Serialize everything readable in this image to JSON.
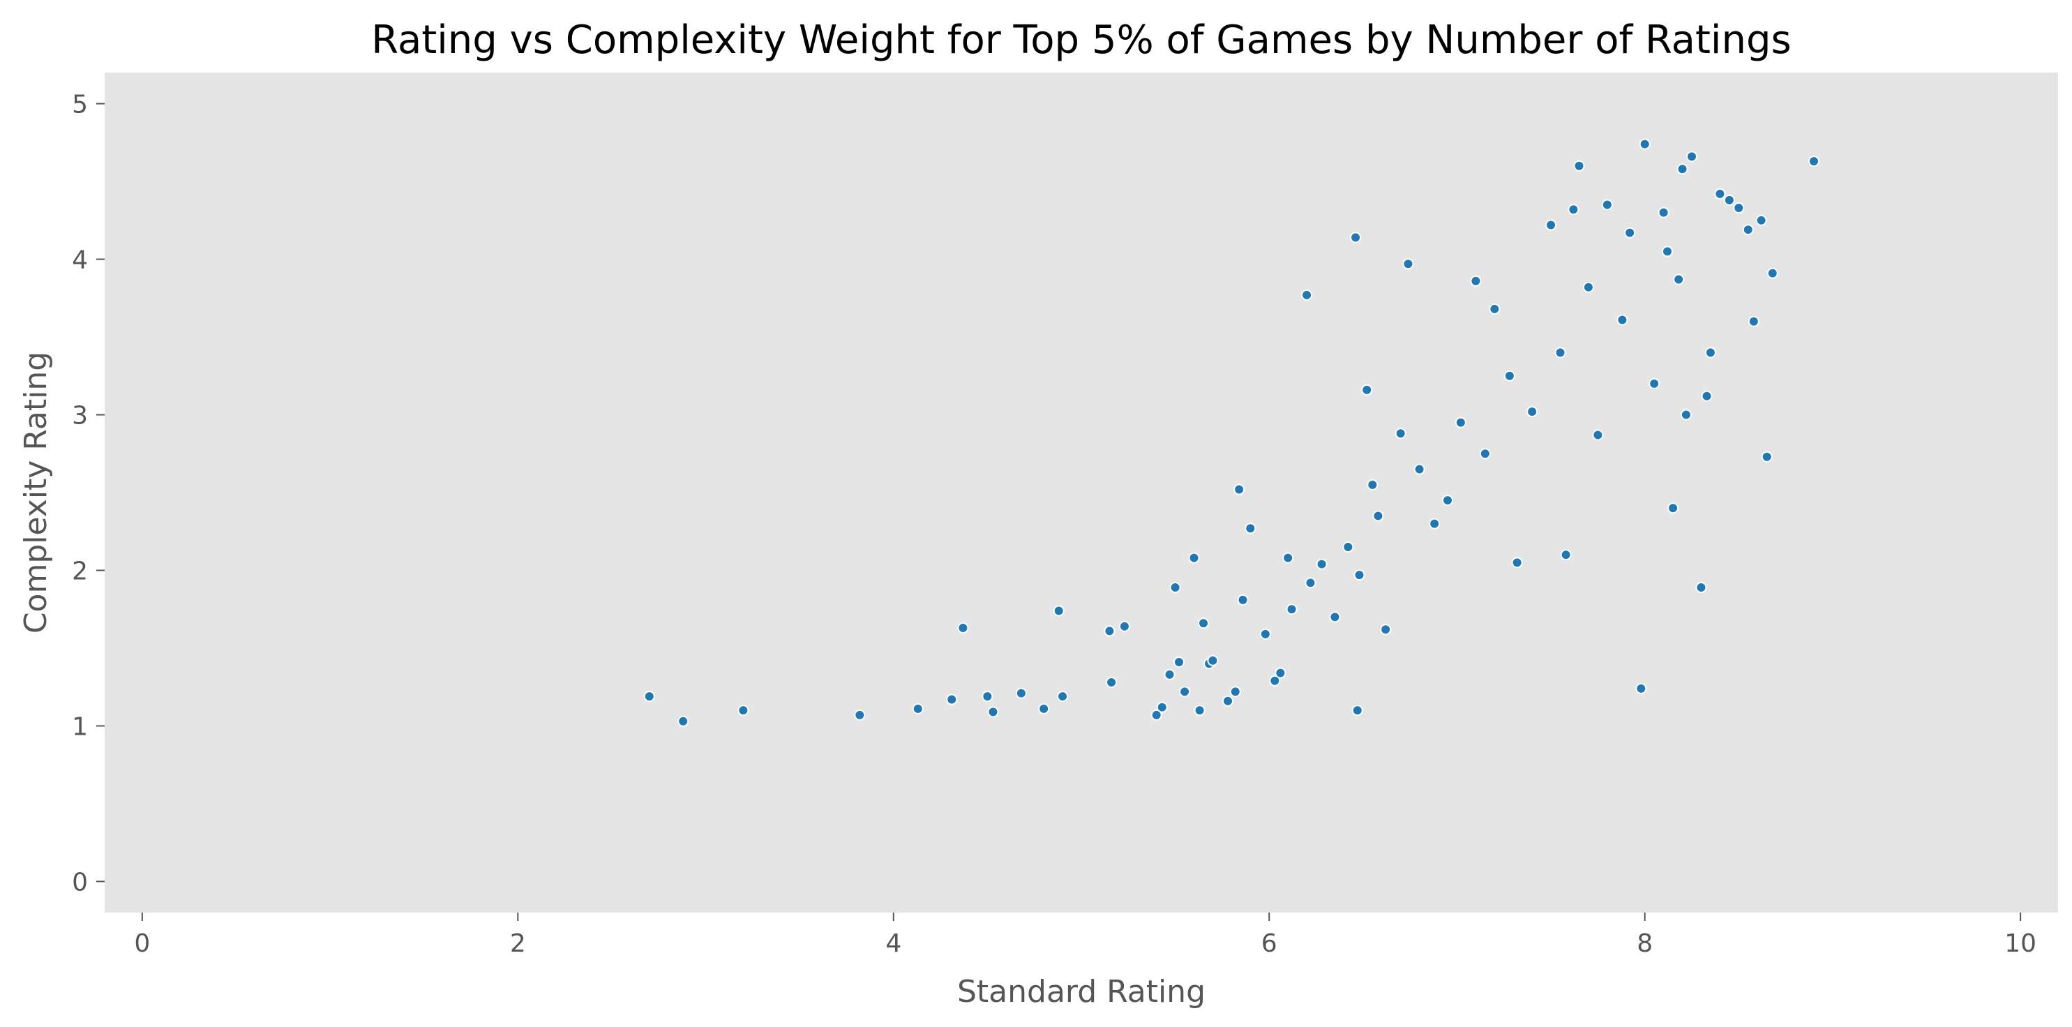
{
  "chart_data": {
    "type": "scatter",
    "title": "Rating vs Complexity Weight for Top 5% of Games by Number of Ratings",
    "xlabel": "Standard Rating",
    "ylabel": "Complexity Rating",
    "xlim": [
      -0.2,
      10.2
    ],
    "ylim": [
      -0.2,
      5.2
    ],
    "xticks": [
      0,
      2,
      4,
      6,
      8,
      10
    ],
    "yticks": [
      0,
      1,
      2,
      3,
      4,
      5
    ],
    "grid": false,
    "legend": "none",
    "colors": {
      "plot_background": "#e5e5e5",
      "marker": "#1f77b4",
      "marker_edge": "#ffffff",
      "tick_text": "#555555",
      "title_text": "#000000"
    },
    "series": [
      {
        "x": [
          2.7,
          2.88,
          3.2,
          3.82,
          4.13,
          4.31,
          4.37,
          4.5,
          4.53,
          4.68,
          4.8,
          4.88,
          4.9,
          5.15,
          5.16,
          5.23,
          5.4,
          5.43,
          5.47,
          5.5,
          5.52,
          5.55,
          5.6,
          5.63,
          5.65,
          5.68,
          5.7,
          5.78,
          5.82,
          5.84,
          5.86,
          5.9,
          5.98,
          6.03,
          6.06,
          6.1,
          6.12,
          6.2,
          6.22,
          6.28,
          6.35,
          6.42,
          6.46,
          6.47,
          6.48,
          6.52,
          6.55,
          6.58,
          6.62,
          6.7,
          6.74,
          6.8,
          6.88,
          6.95,
          7.02,
          7.1,
          7.15,
          7.2,
          7.28,
          7.32,
          7.4,
          7.5,
          7.55,
          7.58,
          7.62,
          7.65,
          7.7,
          7.75,
          7.8,
          7.88,
          7.92,
          7.98,
          8.0,
          8.05,
          8.1,
          8.12,
          8.15,
          8.18,
          8.2,
          8.22,
          8.25,
          8.3,
          8.33,
          8.35,
          8.4,
          8.45,
          8.5,
          8.55,
          8.58,
          8.62,
          8.65,
          8.68,
          8.9
        ],
        "y": [
          1.19,
          1.03,
          1.1,
          1.07,
          1.11,
          1.17,
          1.63,
          1.19,
          1.09,
          1.21,
          1.11,
          1.74,
          1.19,
          1.61,
          1.28,
          1.64,
          1.07,
          1.12,
          1.33,
          1.89,
          1.41,
          1.22,
          2.08,
          1.1,
          1.66,
          1.4,
          1.42,
          1.16,
          1.22,
          2.52,
          1.81,
          2.27,
          1.59,
          1.29,
          1.34,
          2.08,
          1.75,
          3.77,
          1.92,
          2.04,
          1.7,
          2.15,
          4.14,
          1.1,
          1.97,
          3.16,
          2.55,
          2.35,
          1.62,
          2.88,
          3.97,
          2.65,
          2.3,
          2.45,
          2.95,
          3.86,
          2.75,
          3.68,
          3.25,
          2.05,
          3.02,
          4.22,
          3.4,
          2.1,
          4.32,
          4.6,
          3.82,
          2.87,
          4.35,
          3.61,
          4.17,
          1.24,
          4.74,
          3.2,
          4.3,
          4.05,
          2.4,
          3.87,
          4.58,
          3.0,
          4.66,
          1.89,
          3.12,
          3.4,
          4.42,
          4.38,
          4.33,
          4.19,
          3.6,
          4.25,
          2.73,
          3.91,
          4.63
        ]
      }
    ]
  }
}
